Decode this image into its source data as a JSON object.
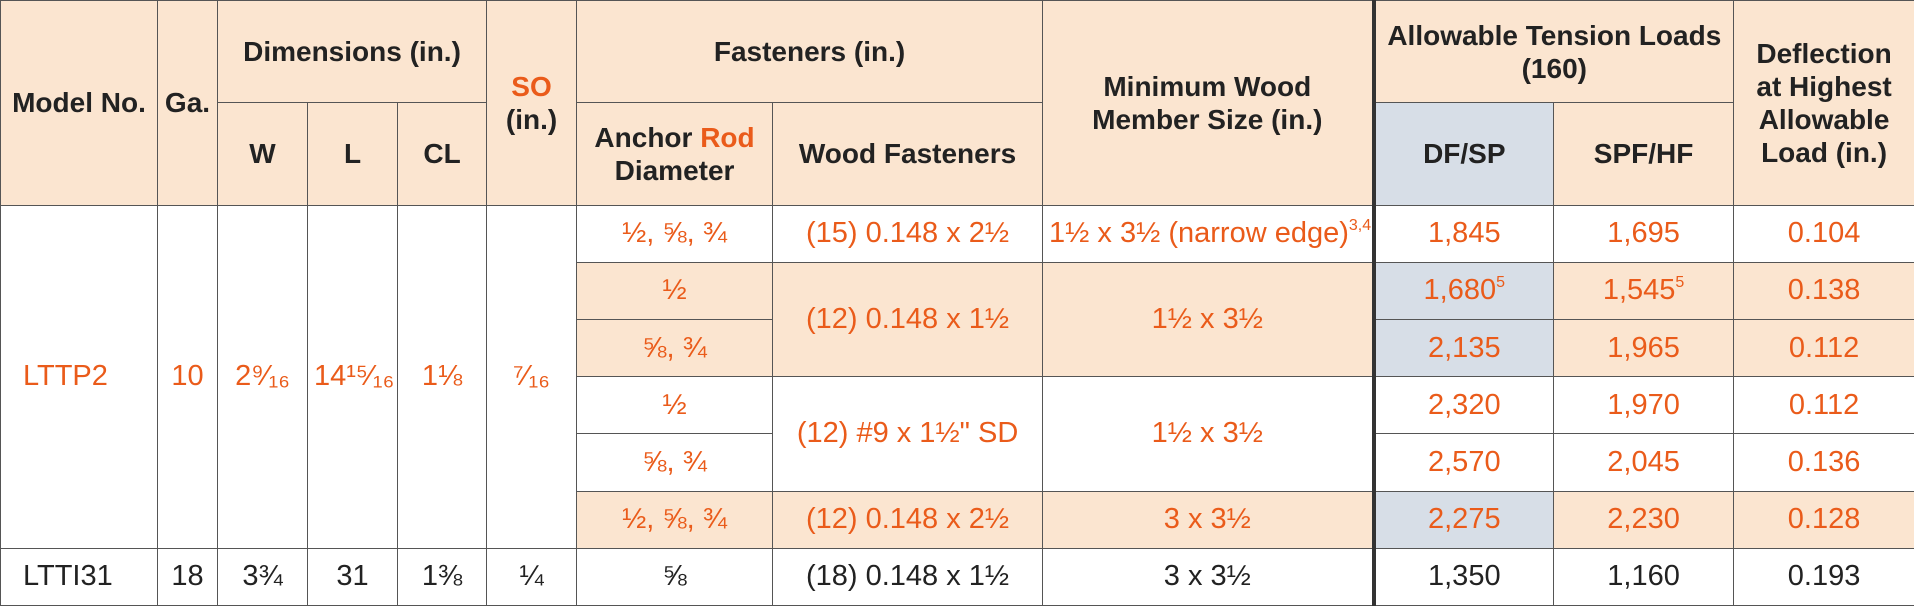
{
  "headers": {
    "model_no": "Model No.",
    "ga": "Ga.",
    "dimensions": "Dimensions (in.)",
    "w": "W",
    "l": "L",
    "cl": "CL",
    "so": "SO",
    "so_unit": "(in.)",
    "fasteners": "Fasteners (in.)",
    "anchor_pre": "Anchor ",
    "anchor_rod": "Rod",
    "anchor_post": "Diameter",
    "wood_fasteners": "Wood Fasteners",
    "min_wood": "Minimum Wood Member Size (in.)",
    "allowable": "Allowable Tension Loads (160)",
    "dfsp": "DF/SP",
    "spfhf": "SPF/HF",
    "deflection": "Deflection at Highest Allowable Load (in.)"
  },
  "lttp2": {
    "model": "LTTP2",
    "ga": "10",
    "w": "2⁹⁄₁₆",
    "l": "14¹⁵⁄₁₆",
    "cl": "1⅛",
    "so": "⁷⁄₁₆",
    "rows": [
      {
        "anchor": "½, ⅝, ¾",
        "df": "1,845",
        "df_sup": "",
        "spf": "1,695",
        "spf_sup": "",
        "defl": "0.104"
      },
      {
        "anchor": "½",
        "df": "1,680",
        "df_sup": "5",
        "spf": "1,545",
        "spf_sup": "5",
        "defl": "0.138"
      },
      {
        "anchor": "⅝, ¾",
        "df": "2,135",
        "df_sup": "",
        "spf": "1,965",
        "spf_sup": "",
        "defl": "0.112"
      },
      {
        "anchor": "½",
        "df": "2,320",
        "df_sup": "",
        "spf": "1,970",
        "spf_sup": "",
        "defl": "0.112"
      },
      {
        "anchor": "⅝, ¾",
        "df": "2,570",
        "df_sup": "",
        "spf": "2,045",
        "spf_sup": "",
        "defl": "0.136"
      },
      {
        "anchor": "½, ⅝, ¾",
        "df": "2,275",
        "df_sup": "",
        "spf": "2,230",
        "spf_sup": "",
        "defl": "0.128"
      }
    ],
    "groups": [
      {
        "fastener": "(15) 0.148 x 2½",
        "wood": "1½ x 3½ (narrow edge)",
        "wood_sup": "3,4"
      },
      {
        "fastener": "(12) 0.148 x 1½",
        "wood": "1½ x 3½",
        "wood_sup": ""
      },
      {
        "fastener": "(12) #9 x 1½\" SD",
        "wood": "1½ x 3½",
        "wood_sup": ""
      },
      {
        "fastener": "(12) 0.148 x 2½",
        "wood": "3 x 3½",
        "wood_sup": ""
      }
    ]
  },
  "ltti31": {
    "model": "LTTI31",
    "ga": "18",
    "w": "3¾",
    "l": "31",
    "cl": "1⅜",
    "so": "¼",
    "anchor": "⅝",
    "fastener": "(18) 0.148 x 1½",
    "wood": "3 x 3½",
    "df": "1,350",
    "spf": "1,160",
    "defl": "0.193"
  },
  "colors": {
    "accent": "#ea5b1a",
    "header_bg": "#fbe5d0",
    "df_highlight": "#d7dee7",
    "text": "#222222"
  }
}
